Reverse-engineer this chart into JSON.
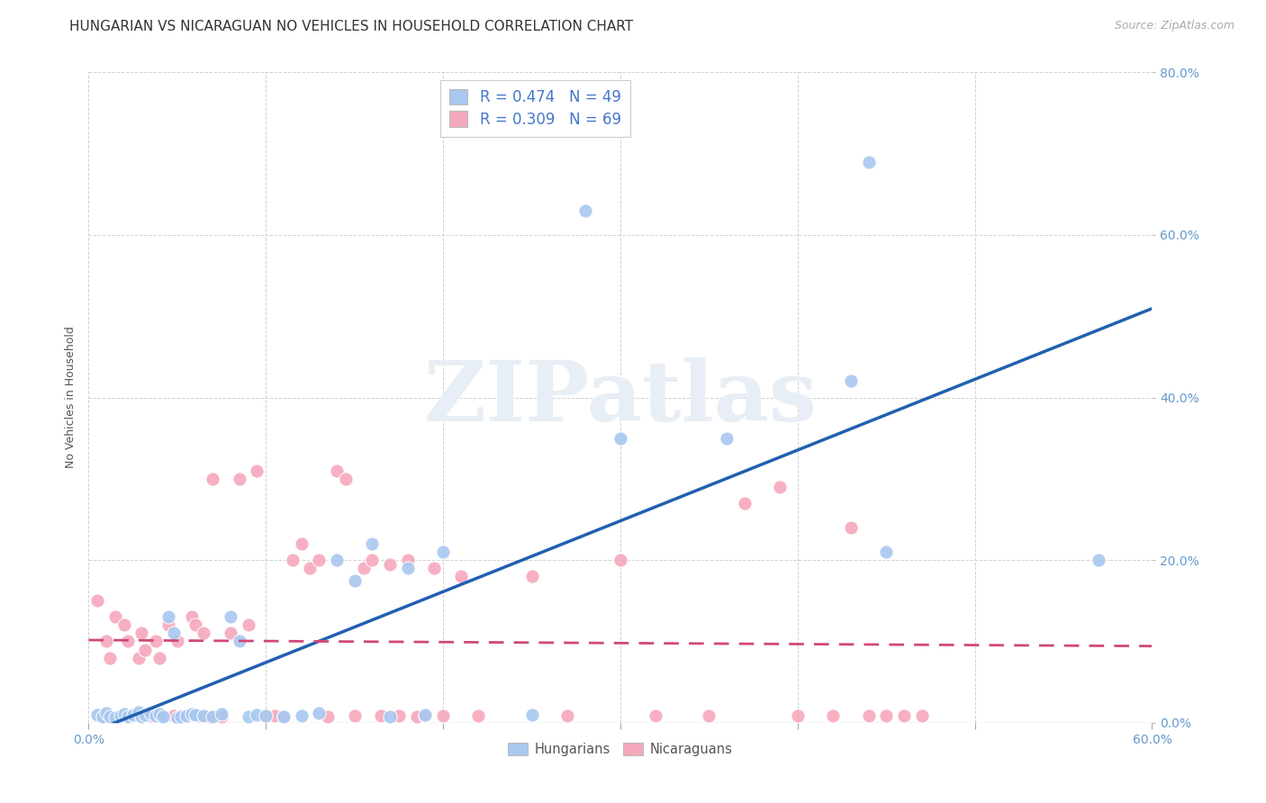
{
  "title": "HUNGARIAN VS NICARAGUAN NO VEHICLES IN HOUSEHOLD CORRELATION CHART",
  "source": "Source: ZipAtlas.com",
  "ylabel": "No Vehicles in Household",
  "xlim": [
    0.0,
    0.6
  ],
  "ylim": [
    0.0,
    0.8
  ],
  "xticks": [
    0.0,
    0.1,
    0.2,
    0.3,
    0.4,
    0.5,
    0.6
  ],
  "yticks": [
    0.0,
    0.2,
    0.4,
    0.6,
    0.8
  ],
  "xtick_labels_show": [
    "0.0%",
    "",
    "",
    "",
    "",
    "",
    "60.0%"
  ],
  "ytick_labels": [
    "0.0%",
    "20.0%",
    "40.0%",
    "60.0%",
    "80.0%"
  ],
  "hungarian_R": 0.474,
  "hungarian_N": 49,
  "nicaraguan_R": 0.309,
  "nicaraguan_N": 69,
  "hungarian_color": "#A8C8F0",
  "nicaraguan_color": "#F5A8BC",
  "hungarian_line_color": "#2060B0",
  "nicaraguan_line_color": "#D04878",
  "watermark_text": "ZIPatlas",
  "watermark_color": "#E8EEF5",
  "tick_color": "#6699CC",
  "title_color": "#333333",
  "source_color": "#AAAAAA",
  "ylabel_color": "#555555",
  "title_fontsize": 11,
  "source_fontsize": 9,
  "axis_label_fontsize": 9,
  "tick_fontsize": 10,
  "legend_text_color": "#4477CC",
  "background_color": "#FFFFFF",
  "grid_color": "#CCCCCC",
  "hungarian_points": [
    [
      0.005,
      0.01
    ],
    [
      0.008,
      0.007
    ],
    [
      0.01,
      0.012
    ],
    [
      0.012,
      0.008
    ],
    [
      0.015,
      0.006
    ],
    [
      0.018,
      0.009
    ],
    [
      0.02,
      0.011
    ],
    [
      0.022,
      0.007
    ],
    [
      0.025,
      0.01
    ],
    [
      0.028,
      0.013
    ],
    [
      0.03,
      0.008
    ],
    [
      0.032,
      0.01
    ],
    [
      0.035,
      0.012
    ],
    [
      0.038,
      0.009
    ],
    [
      0.04,
      0.011
    ],
    [
      0.042,
      0.008
    ],
    [
      0.045,
      0.13
    ],
    [
      0.048,
      0.11
    ],
    [
      0.05,
      0.006
    ],
    [
      0.052,
      0.008
    ],
    [
      0.055,
      0.009
    ],
    [
      0.058,
      0.011
    ],
    [
      0.06,
      0.01
    ],
    [
      0.065,
      0.009
    ],
    [
      0.07,
      0.008
    ],
    [
      0.075,
      0.011
    ],
    [
      0.08,
      0.13
    ],
    [
      0.085,
      0.1
    ],
    [
      0.09,
      0.007
    ],
    [
      0.095,
      0.01
    ],
    [
      0.1,
      0.009
    ],
    [
      0.11,
      0.008
    ],
    [
      0.12,
      0.009
    ],
    [
      0.13,
      0.012
    ],
    [
      0.14,
      0.2
    ],
    [
      0.15,
      0.175
    ],
    [
      0.16,
      0.22
    ],
    [
      0.17,
      0.008
    ],
    [
      0.18,
      0.19
    ],
    [
      0.19,
      0.01
    ],
    [
      0.2,
      0.21
    ],
    [
      0.25,
      0.01
    ],
    [
      0.28,
      0.63
    ],
    [
      0.3,
      0.35
    ],
    [
      0.36,
      0.35
    ],
    [
      0.43,
      0.42
    ],
    [
      0.44,
      0.69
    ],
    [
      0.45,
      0.21
    ],
    [
      0.57,
      0.2
    ]
  ],
  "nicaraguan_points": [
    [
      0.005,
      0.15
    ],
    [
      0.008,
      0.008
    ],
    [
      0.01,
      0.1
    ],
    [
      0.012,
      0.08
    ],
    [
      0.015,
      0.13
    ],
    [
      0.018,
      0.009
    ],
    [
      0.02,
      0.12
    ],
    [
      0.022,
      0.1
    ],
    [
      0.025,
      0.009
    ],
    [
      0.028,
      0.08
    ],
    [
      0.03,
      0.11
    ],
    [
      0.032,
      0.09
    ],
    [
      0.035,
      0.009
    ],
    [
      0.038,
      0.1
    ],
    [
      0.04,
      0.08
    ],
    [
      0.042,
      0.009
    ],
    [
      0.045,
      0.12
    ],
    [
      0.048,
      0.009
    ],
    [
      0.05,
      0.1
    ],
    [
      0.052,
      0.009
    ],
    [
      0.055,
      0.008
    ],
    [
      0.058,
      0.13
    ],
    [
      0.06,
      0.12
    ],
    [
      0.062,
      0.009
    ],
    [
      0.065,
      0.11
    ],
    [
      0.068,
      0.008
    ],
    [
      0.07,
      0.3
    ],
    [
      0.075,
      0.008
    ],
    [
      0.08,
      0.11
    ],
    [
      0.085,
      0.3
    ],
    [
      0.09,
      0.12
    ],
    [
      0.095,
      0.31
    ],
    [
      0.1,
      0.008
    ],
    [
      0.105,
      0.009
    ],
    [
      0.11,
      0.008
    ],
    [
      0.115,
      0.2
    ],
    [
      0.12,
      0.22
    ],
    [
      0.125,
      0.19
    ],
    [
      0.13,
      0.2
    ],
    [
      0.135,
      0.008
    ],
    [
      0.14,
      0.31
    ],
    [
      0.145,
      0.3
    ],
    [
      0.15,
      0.009
    ],
    [
      0.155,
      0.19
    ],
    [
      0.16,
      0.2
    ],
    [
      0.165,
      0.009
    ],
    [
      0.17,
      0.195
    ],
    [
      0.175,
      0.009
    ],
    [
      0.18,
      0.2
    ],
    [
      0.185,
      0.008
    ],
    [
      0.19,
      0.009
    ],
    [
      0.195,
      0.19
    ],
    [
      0.2,
      0.009
    ],
    [
      0.21,
      0.18
    ],
    [
      0.22,
      0.009
    ],
    [
      0.25,
      0.18
    ],
    [
      0.27,
      0.009
    ],
    [
      0.3,
      0.2
    ],
    [
      0.32,
      0.009
    ],
    [
      0.35,
      0.009
    ],
    [
      0.37,
      0.27
    ],
    [
      0.39,
      0.29
    ],
    [
      0.4,
      0.009
    ],
    [
      0.42,
      0.009
    ],
    [
      0.43,
      0.24
    ],
    [
      0.44,
      0.009
    ],
    [
      0.45,
      0.009
    ],
    [
      0.46,
      0.009
    ],
    [
      0.47,
      0.009
    ]
  ]
}
